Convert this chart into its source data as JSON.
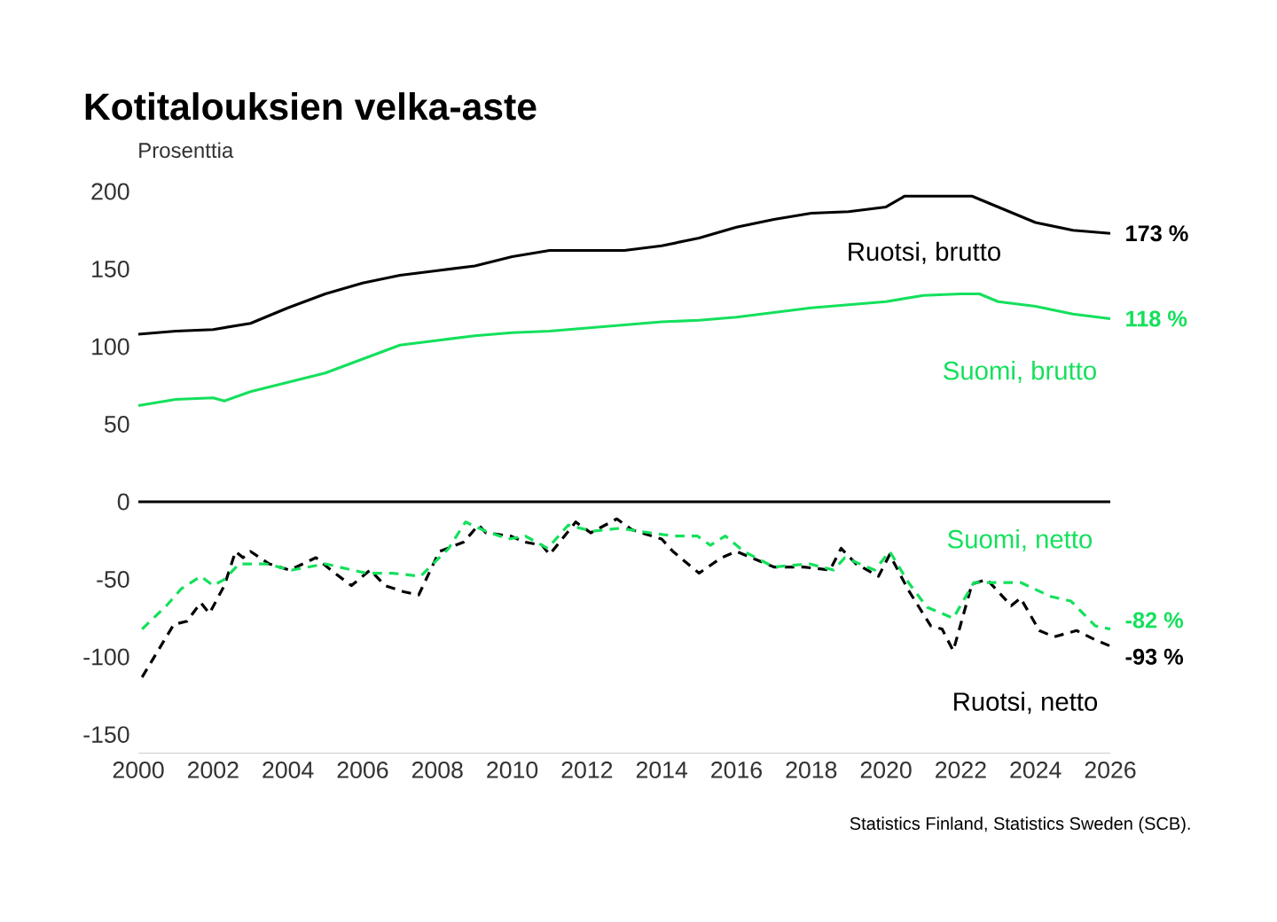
{
  "chart_data": {
    "type": "line",
    "title": "Kotitalouksien velka-aste",
    "ylabel": "Prosenttia",
    "xlim": [
      2000,
      2026
    ],
    "xticks": [
      2000,
      2002,
      2004,
      2006,
      2008,
      2010,
      2012,
      2014,
      2016,
      2018,
      2020,
      2022,
      2024,
      2026
    ],
    "ylim": [
      -162,
      200
    ],
    "yticks": [
      -150,
      -100,
      -50,
      0,
      50,
      100,
      150,
      200
    ],
    "grid": false,
    "marker": "none",
    "ref_lines": [
      {
        "axis": "y",
        "value": 0,
        "color": "#000000"
      }
    ],
    "annotations": [
      "Statistics Finland, Statistics Sweden (SCB)."
    ],
    "series": [
      {
        "name": "Ruotsi, brutto",
        "color": "#000000",
        "line_style": "solid",
        "x": [
          2000,
          2001,
          2002,
          2003,
          2004,
          2005,
          2006,
          2007,
          2008,
          2009,
          2010,
          2011,
          2012,
          2013,
          2014,
          2015,
          2016,
          2017,
          2018,
          2019,
          2020,
          2020.5,
          2021.5,
          2022.3,
          2023,
          2024,
          2025,
          2026
        ],
        "values": [
          108,
          110,
          111,
          115,
          125,
          134,
          141,
          146,
          149,
          152,
          158,
          162,
          162,
          162,
          165,
          170,
          177,
          182,
          186,
          187,
          190,
          197,
          197,
          197,
          190,
          180,
          175,
          173
        ],
        "value_labels": [
          null,
          null,
          null,
          null,
          null,
          null,
          null,
          null,
          null,
          null,
          null,
          null,
          null,
          null,
          null,
          null,
          null,
          null,
          null,
          null,
          null,
          null,
          null,
          null,
          null,
          null,
          null,
          "173 %"
        ]
      },
      {
        "name": "Suomi, brutto",
        "color": "#14e05c",
        "line_style": "solid",
        "x": [
          2000,
          2001,
          2002,
          2002.3,
          2003,
          2004,
          2005,
          2006,
          2007,
          2008,
          2009,
          2010,
          2011,
          2012,
          2013,
          2014,
          2015,
          2016,
          2017,
          2018,
          2019,
          2020,
          2021,
          2022,
          2022.5,
          2023,
          2024,
          2025,
          2026
        ],
        "values": [
          62,
          66,
          67,
          65,
          71,
          77,
          83,
          92,
          101,
          104,
          107,
          109,
          110,
          112,
          114,
          116,
          117,
          119,
          122,
          125,
          127,
          129,
          133,
          134,
          134,
          129,
          126,
          121,
          118
        ],
        "value_labels": [
          null,
          null,
          null,
          null,
          null,
          null,
          null,
          null,
          null,
          null,
          null,
          null,
          null,
          null,
          null,
          null,
          null,
          null,
          null,
          null,
          null,
          null,
          null,
          null,
          null,
          null,
          null,
          null,
          "118 %"
        ]
      },
      {
        "name": "Ruotsi, netto",
        "color": "#000000",
        "line_style": "dashed",
        "x": [
          2000.1,
          2000.95,
          2001.3,
          2001.67,
          2001.9,
          2002.3,
          2002.6,
          2002.8,
          2003.0,
          2003.5,
          2004.05,
          2004.75,
          2005.15,
          2005.7,
          2006.2,
          2006.6,
          2007.1,
          2007.5,
          2008.05,
          2008.7,
          2009.1,
          2009.3,
          2009.95,
          2010.35,
          2010.8,
          2011.0,
          2011.7,
          2012.1,
          2012.8,
          2013.2,
          2014.0,
          2014.3,
          2015.0,
          2015.6,
          2016.0,
          2017.0,
          2017.8,
          2018.5,
          2018.8,
          2019.2,
          2019.8,
          2020.1,
          2020.6,
          2021.2,
          2021.5,
          2021.8,
          2022.3,
          2022.7,
          2023.35,
          2023.6,
          2024.1,
          2024.5,
          2025.1,
          2025.6,
          2026.0
        ],
        "values": [
          -113,
          -79,
          -77,
          -65,
          -72,
          -54,
          -32,
          -36,
          -32,
          -40,
          -44,
          -36,
          -44,
          -54,
          -44,
          -54,
          -58,
          -60,
          -32,
          -26,
          -15,
          -20,
          -22,
          -26,
          -28,
          -34,
          -13,
          -20,
          -11,
          -18,
          -24,
          -32,
          -46,
          -36,
          -32,
          -42,
          -42,
          -44,
          -30,
          -40,
          -48,
          -34,
          -57,
          -80,
          -82,
          -96,
          -53,
          -50,
          -67,
          -62,
          -83,
          -87,
          -83,
          -89,
          -93
        ],
        "value_labels": [
          null,
          null,
          null,
          null,
          null,
          null,
          null,
          null,
          null,
          null,
          null,
          null,
          null,
          null,
          null,
          null,
          null,
          null,
          null,
          null,
          null,
          null,
          null,
          null,
          null,
          null,
          null,
          null,
          null,
          null,
          null,
          null,
          null,
          null,
          null,
          null,
          null,
          null,
          null,
          null,
          null,
          null,
          null,
          null,
          null,
          null,
          null,
          null,
          null,
          null,
          null,
          null,
          null,
          null,
          "-93 %"
        ]
      },
      {
        "name": "Suomi, netto",
        "color": "#14e05c",
        "line_style": "dashed",
        "x": [
          2000.1,
          2000.75,
          2001.15,
          2001.67,
          2002.0,
          2002.3,
          2002.7,
          2003.4,
          2004.1,
          2005.0,
          2006.1,
          2006.8,
          2007.55,
          2008.3,
          2008.75,
          2009.3,
          2009.9,
          2010.35,
          2010.95,
          2011.5,
          2012.15,
          2012.9,
          2013.4,
          2014.3,
          2014.95,
          2015.3,
          2015.7,
          2016.2,
          2017.0,
          2017.95,
          2018.6,
          2018.9,
          2019.7,
          2020.1,
          2020.6,
          2021.1,
          2021.8,
          2022.35,
          2022.8,
          2023.6,
          2024.4,
          2024.95,
          2025.6,
          2026.0
        ],
        "values": [
          -82,
          -67,
          -56,
          -48,
          -54,
          -50,
          -40,
          -40,
          -44,
          -40,
          -46,
          -46,
          -48,
          -30,
          -13,
          -19,
          -24,
          -22,
          -30,
          -15,
          -19,
          -17,
          -19,
          -22,
          -22,
          -28,
          -22,
          -32,
          -42,
          -40,
          -44,
          -36,
          -44,
          -32,
          -52,
          -68,
          -75,
          -52,
          -52,
          -52,
          -61,
          -64,
          -80,
          -82
        ],
        "value_labels": [
          null,
          null,
          null,
          null,
          null,
          null,
          null,
          null,
          null,
          null,
          null,
          null,
          null,
          null,
          null,
          null,
          null,
          null,
          null,
          null,
          null,
          null,
          null,
          null,
          null,
          null,
          null,
          null,
          null,
          null,
          null,
          null,
          null,
          null,
          null,
          null,
          null,
          null,
          null,
          null,
          null,
          null,
          null,
          "-82 %"
        ]
      }
    ]
  }
}
